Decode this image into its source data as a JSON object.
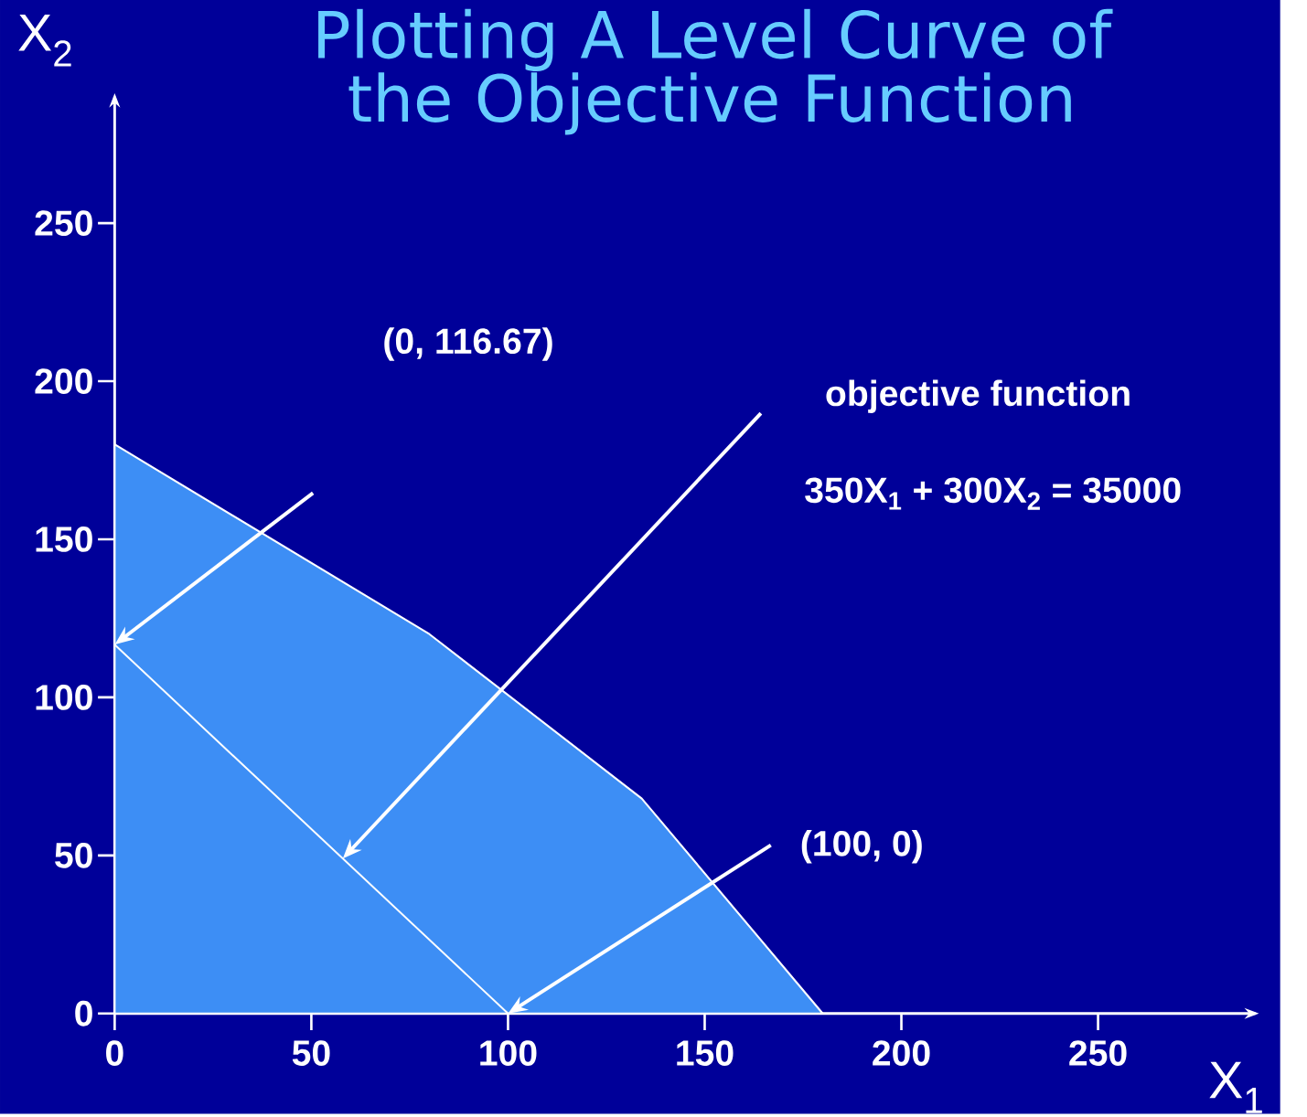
{
  "chart_data": {
    "type": "area",
    "title": "Plotting A Level Curve of the Objective Function",
    "xlabel": "X$_{1}$",
    "ylabel": "X$_{2}$",
    "xlim": [
      0,
      290
    ],
    "ylim": [
      0,
      290
    ],
    "xticks": [
      0,
      50,
      100,
      150,
      200,
      250
    ],
    "yticks": [
      0,
      50,
      100,
      150,
      200,
      250
    ],
    "series": [
      {
        "type": "area",
        "color": "#3d8ef5",
        "x": [
          0,
          80,
          134,
          180
        ],
        "values": [
          180,
          120,
          68,
          0
        ]
      },
      {
        "type": "line",
        "color": "#ffffff",
        "x": [
          0,
          100
        ],
        "values": [
          116.67,
          0
        ]
      }
    ],
    "annotations": [
      "(0, 116.67)",
      "(100, 0)",
      "objective function",
      "350X$_{1}$ + 300X$_{2}$ = 35000"
    ],
    "grid": false
  }
}
